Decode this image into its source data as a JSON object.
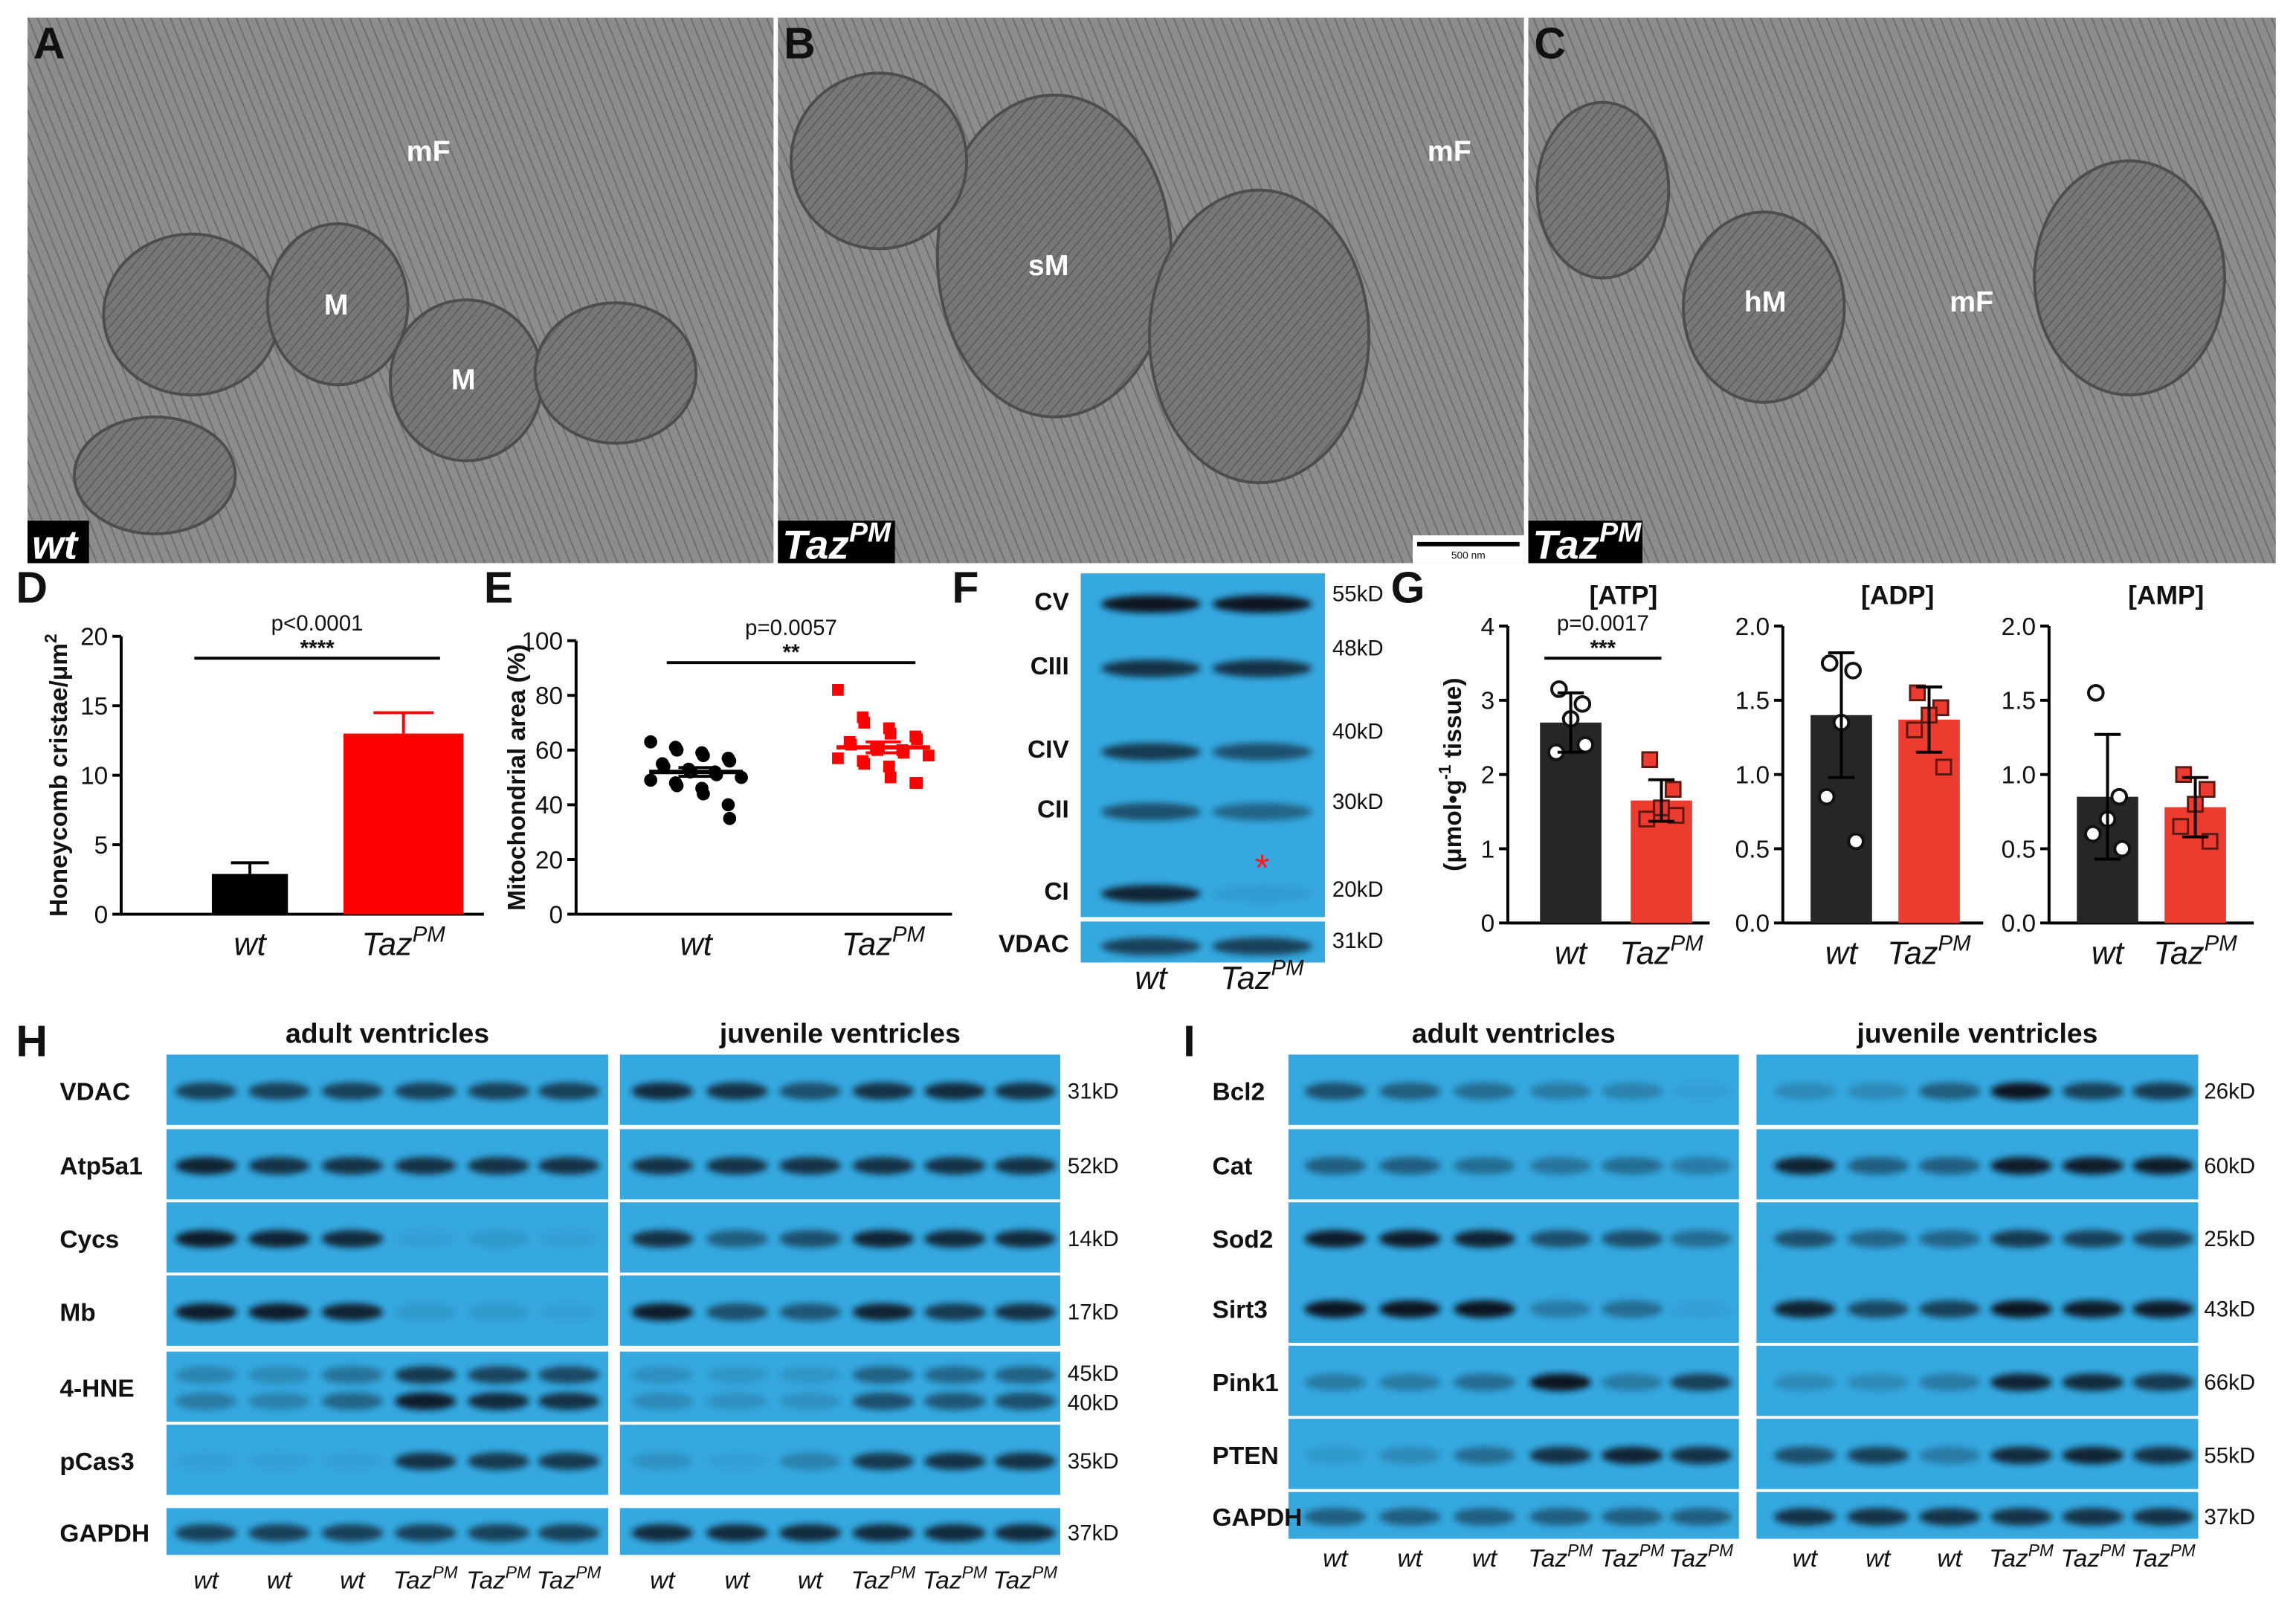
{
  "em_panels": [
    {
      "letter": "A",
      "annotations": [
        "mF",
        "M",
        "M"
      ],
      "genotype": {
        "text": "wt"
      }
    },
    {
      "letter": "B",
      "annotations": [
        "sM",
        "mF"
      ],
      "genotype": {
        "text": "Taz",
        "sup": "PM"
      },
      "scale_bar": "500 nm"
    },
    {
      "letter": "C",
      "annotations": [
        "hM",
        "mF"
      ],
      "genotype": {
        "text": "Taz",
        "sup": "PM"
      }
    }
  ],
  "chart_data": [
    {
      "type": "bar",
      "letter": "D",
      "ylabel": {
        "text": "Honeycomb cristae/μm",
        "sup": "2"
      },
      "categories": [
        {
          "text": "wt"
        },
        {
          "text": "Taz",
          "sup": "PM"
        }
      ],
      "values": [
        2.9,
        13.0
      ],
      "errors": [
        0.8,
        1.5
      ],
      "colors": [
        "#000000",
        "#ff0000"
      ],
      "ylim": [
        0,
        20
      ],
      "yticks": [
        0,
        5,
        10,
        15,
        20
      ],
      "p_value": "p<0.0001",
      "stars": "****"
    },
    {
      "type": "dot",
      "letter": "E",
      "ylabel": {
        "text": "Mitochondrial area (%)"
      },
      "categories": [
        {
          "text": "wt"
        },
        {
          "text": "Taz",
          "sup": "PM"
        }
      ],
      "points": [
        [
          63,
          61,
          60,
          59,
          58,
          57,
          56,
          55,
          54,
          53,
          52,
          52,
          51,
          50,
          49,
          48,
          47,
          46,
          44,
          40,
          35
        ],
        [
          82,
          72,
          70,
          68,
          66,
          65,
          64,
          63,
          62,
          61,
          60,
          60,
          59,
          58,
          57,
          56,
          55,
          54,
          50,
          48,
          48
        ]
      ],
      "means": [
        52,
        61
      ],
      "errors": [
        1.6,
        2.0
      ],
      "colors": [
        "#000000",
        "#ff0000"
      ],
      "ylim": [
        0,
        100
      ],
      "yticks": [
        0,
        20,
        40,
        60,
        80,
        100
      ],
      "p_value": "p=0.0057",
      "stars": "**"
    },
    {
      "type": "bar_dots",
      "letter": "G",
      "title": "[ATP]",
      "ylabel": {
        "pre": "(μmol•g",
        "sup": "-1",
        "post": " tissue)"
      },
      "categories": [
        {
          "text": "wt"
        },
        {
          "text": "Taz",
          "sup": "PM"
        }
      ],
      "values": [
        2.7,
        1.65
      ],
      "errors": [
        0.4,
        0.28
      ],
      "points": [
        [
          3.15,
          2.95,
          2.75,
          2.3,
          2.4
        ],
        [
          2.2,
          1.8,
          1.55,
          1.4,
          1.45
        ]
      ],
      "colors": [
        "#262626",
        "#ee3b2f"
      ],
      "ylim": [
        0,
        4
      ],
      "yticks": [
        0,
        1,
        2,
        3,
        4
      ],
      "p_value": "p=0.0017",
      "stars": "***"
    },
    {
      "type": "bar_dots",
      "title": "[ADP]",
      "categories": [
        {
          "text": "wt"
        },
        {
          "text": "Taz",
          "sup": "PM"
        }
      ],
      "values": [
        1.4,
        1.37
      ],
      "errors": [
        0.42,
        0.22
      ],
      "points": [
        [
          1.75,
          1.7,
          1.35,
          0.85,
          0.55
        ],
        [
          1.55,
          1.45,
          1.4,
          1.3,
          1.05
        ]
      ],
      "colors": [
        "#262626",
        "#ee3b2f"
      ],
      "ylim": [
        0,
        2
      ],
      "yticks": [
        {
          "value": 0,
          "label": "0.0"
        },
        {
          "value": 0.5,
          "label": "0.5"
        },
        {
          "value": 1,
          "label": "1.0"
        },
        {
          "value": 1.5,
          "label": "1.5"
        },
        {
          "value": 2,
          "label": "2.0"
        }
      ]
    },
    {
      "type": "bar_dots",
      "title": "[AMP]",
      "categories": [
        {
          "text": "wt"
        },
        {
          "text": "Taz",
          "sup": "PM"
        }
      ],
      "values": [
        0.85,
        0.78
      ],
      "errors": [
        0.42,
        0.2
      ],
      "points": [
        [
          1.55,
          0.85,
          0.7,
          0.6,
          0.5
        ],
        [
          1.0,
          0.9,
          0.8,
          0.65,
          0.55
        ]
      ],
      "colors": [
        "#262626",
        "#ee3b2f"
      ],
      "ylim": [
        0,
        2
      ],
      "yticks": [
        {
          "value": 0,
          "label": "0.0"
        },
        {
          "value": 0.5,
          "label": "0.5"
        },
        {
          "value": 1,
          "label": "1.0"
        },
        {
          "value": 1.5,
          "label": "1.5"
        },
        {
          "value": 2,
          "label": "2.0"
        }
      ]
    }
  ],
  "blot_f": {
    "letter": "F",
    "rows": [
      {
        "label": "CV",
        "size": "55kD"
      },
      {
        "label": "CIII",
        "size": "48kD"
      },
      {
        "label": "CIV",
        "size": "40kD"
      },
      {
        "label": "CII",
        "size": "30kD"
      },
      {
        "label": "CI",
        "size": "20kD"
      },
      {
        "label": "VDAC",
        "size": "31kD"
      }
    ],
    "lanes": [
      {
        "text": "wt"
      },
      {
        "text": "Taz",
        "sup": "PM"
      }
    ],
    "marker": "*"
  },
  "blot_h": {
    "letter": "H",
    "rows": [
      {
        "label": "VDAC",
        "sizes": [
          "31kD"
        ]
      },
      {
        "label": "Atp5a1",
        "sizes": [
          "52kD"
        ]
      },
      {
        "label": "Cycs",
        "sizes": [
          "14kD"
        ]
      },
      {
        "label": "Mb",
        "sizes": [
          "17kD"
        ]
      },
      {
        "label": "4-HNE",
        "sizes": [
          "45kD",
          "40kD"
        ]
      },
      {
        "label": "pCas3",
        "sizes": [
          "35kD"
        ]
      },
      {
        "label": "GAPDH",
        "sizes": [
          "37kD"
        ]
      }
    ],
    "groups": [
      {
        "title": "adult ventricles",
        "lanes": [
          {
            "text": "wt"
          },
          {
            "text": "wt"
          },
          {
            "text": "wt"
          },
          {
            "text": "Taz",
            "sup": "PM"
          },
          {
            "text": "Taz",
            "sup": "PM"
          },
          {
            "text": "Taz",
            "sup": "PM"
          }
        ]
      },
      {
        "title": "juvenile ventricles",
        "lanes": [
          {
            "text": "wt"
          },
          {
            "text": "wt"
          },
          {
            "text": "wt"
          },
          {
            "text": "Taz",
            "sup": "PM"
          },
          {
            "text": "Taz",
            "sup": "PM"
          },
          {
            "text": "Taz",
            "sup": "PM"
          }
        ]
      }
    ]
  },
  "blot_i": {
    "letter": "I",
    "rows": [
      {
        "label": "Bcl2",
        "sizes": [
          "26kD"
        ]
      },
      {
        "label": "Cat",
        "sizes": [
          "60kD"
        ]
      },
      {
        "label": "Sod2",
        "sizes": [
          "25kD"
        ]
      },
      {
        "label": "Sirt3",
        "sizes": [
          "43kD"
        ]
      },
      {
        "label": "Pink1",
        "sizes": [
          "66kD"
        ]
      },
      {
        "label": "PTEN",
        "sizes": [
          "55kD"
        ]
      },
      {
        "label": "GAPDH",
        "sizes": [
          "37kD"
        ]
      }
    ],
    "groups": [
      {
        "title": "adult ventricles",
        "lanes": [
          {
            "text": "wt"
          },
          {
            "text": "wt"
          },
          {
            "text": "wt"
          },
          {
            "text": "Taz",
            "sup": "PM"
          },
          {
            "text": "Taz",
            "sup": "PM"
          },
          {
            "text": "Taz",
            "sup": "PM"
          }
        ]
      },
      {
        "title": "juvenile ventricles",
        "lanes": [
          {
            "text": "wt"
          },
          {
            "text": "wt"
          },
          {
            "text": "wt"
          },
          {
            "text": "Taz",
            "sup": "PM"
          },
          {
            "text": "Taz",
            "sup": "PM"
          },
          {
            "text": "Taz",
            "sup": "PM"
          }
        ]
      }
    ]
  }
}
